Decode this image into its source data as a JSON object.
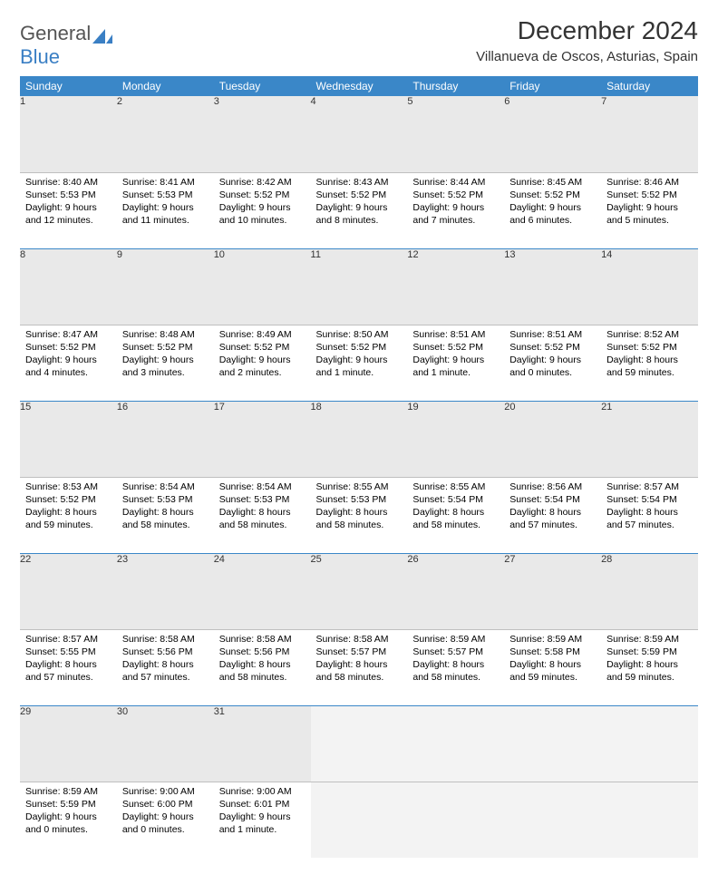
{
  "brand": {
    "part1": "General",
    "part2": "Blue"
  },
  "title": "December 2024",
  "location": "Villanueva de Oscos, Asturias, Spain",
  "colors": {
    "header_bg": "#3a87c8",
    "header_text": "#ffffff",
    "daynum_bg": "#e9e9e9",
    "row_border": "#3a87c8",
    "empty_bg": "#f3f3f3",
    "brand_gray": "#555555",
    "brand_blue": "#3a7fc4"
  },
  "weekdays": [
    "Sunday",
    "Monday",
    "Tuesday",
    "Wednesday",
    "Thursday",
    "Friday",
    "Saturday"
  ],
  "weeks": [
    [
      {
        "n": "1",
        "sr": "8:40 AM",
        "ss": "5:53 PM",
        "dl": "9 hours and 12 minutes."
      },
      {
        "n": "2",
        "sr": "8:41 AM",
        "ss": "5:53 PM",
        "dl": "9 hours and 11 minutes."
      },
      {
        "n": "3",
        "sr": "8:42 AM",
        "ss": "5:52 PM",
        "dl": "9 hours and 10 minutes."
      },
      {
        "n": "4",
        "sr": "8:43 AM",
        "ss": "5:52 PM",
        "dl": "9 hours and 8 minutes."
      },
      {
        "n": "5",
        "sr": "8:44 AM",
        "ss": "5:52 PM",
        "dl": "9 hours and 7 minutes."
      },
      {
        "n": "6",
        "sr": "8:45 AM",
        "ss": "5:52 PM",
        "dl": "9 hours and 6 minutes."
      },
      {
        "n": "7",
        "sr": "8:46 AM",
        "ss": "5:52 PM",
        "dl": "9 hours and 5 minutes."
      }
    ],
    [
      {
        "n": "8",
        "sr": "8:47 AM",
        "ss": "5:52 PM",
        "dl": "9 hours and 4 minutes."
      },
      {
        "n": "9",
        "sr": "8:48 AM",
        "ss": "5:52 PM",
        "dl": "9 hours and 3 minutes."
      },
      {
        "n": "10",
        "sr": "8:49 AM",
        "ss": "5:52 PM",
        "dl": "9 hours and 2 minutes."
      },
      {
        "n": "11",
        "sr": "8:50 AM",
        "ss": "5:52 PM",
        "dl": "9 hours and 1 minute."
      },
      {
        "n": "12",
        "sr": "8:51 AM",
        "ss": "5:52 PM",
        "dl": "9 hours and 1 minute."
      },
      {
        "n": "13",
        "sr": "8:51 AM",
        "ss": "5:52 PM",
        "dl": "9 hours and 0 minutes."
      },
      {
        "n": "14",
        "sr": "8:52 AM",
        "ss": "5:52 PM",
        "dl": "8 hours and 59 minutes."
      }
    ],
    [
      {
        "n": "15",
        "sr": "8:53 AM",
        "ss": "5:52 PM",
        "dl": "8 hours and 59 minutes."
      },
      {
        "n": "16",
        "sr": "8:54 AM",
        "ss": "5:53 PM",
        "dl": "8 hours and 58 minutes."
      },
      {
        "n": "17",
        "sr": "8:54 AM",
        "ss": "5:53 PM",
        "dl": "8 hours and 58 minutes."
      },
      {
        "n": "18",
        "sr": "8:55 AM",
        "ss": "5:53 PM",
        "dl": "8 hours and 58 minutes."
      },
      {
        "n": "19",
        "sr": "8:55 AM",
        "ss": "5:54 PM",
        "dl": "8 hours and 58 minutes."
      },
      {
        "n": "20",
        "sr": "8:56 AM",
        "ss": "5:54 PM",
        "dl": "8 hours and 57 minutes."
      },
      {
        "n": "21",
        "sr": "8:57 AM",
        "ss": "5:54 PM",
        "dl": "8 hours and 57 minutes."
      }
    ],
    [
      {
        "n": "22",
        "sr": "8:57 AM",
        "ss": "5:55 PM",
        "dl": "8 hours and 57 minutes."
      },
      {
        "n": "23",
        "sr": "8:58 AM",
        "ss": "5:56 PM",
        "dl": "8 hours and 57 minutes."
      },
      {
        "n": "24",
        "sr": "8:58 AM",
        "ss": "5:56 PM",
        "dl": "8 hours and 58 minutes."
      },
      {
        "n": "25",
        "sr": "8:58 AM",
        "ss": "5:57 PM",
        "dl": "8 hours and 58 minutes."
      },
      {
        "n": "26",
        "sr": "8:59 AM",
        "ss": "5:57 PM",
        "dl": "8 hours and 58 minutes."
      },
      {
        "n": "27",
        "sr": "8:59 AM",
        "ss": "5:58 PM",
        "dl": "8 hours and 59 minutes."
      },
      {
        "n": "28",
        "sr": "8:59 AM",
        "ss": "5:59 PM",
        "dl": "8 hours and 59 minutes."
      }
    ],
    [
      {
        "n": "29",
        "sr": "8:59 AM",
        "ss": "5:59 PM",
        "dl": "9 hours and 0 minutes."
      },
      {
        "n": "30",
        "sr": "9:00 AM",
        "ss": "6:00 PM",
        "dl": "9 hours and 0 minutes."
      },
      {
        "n": "31",
        "sr": "9:00 AM",
        "ss": "6:01 PM",
        "dl": "9 hours and 1 minute."
      },
      null,
      null,
      null,
      null
    ]
  ],
  "labels": {
    "sunrise": "Sunrise:",
    "sunset": "Sunset:",
    "daylight": "Daylight:"
  }
}
